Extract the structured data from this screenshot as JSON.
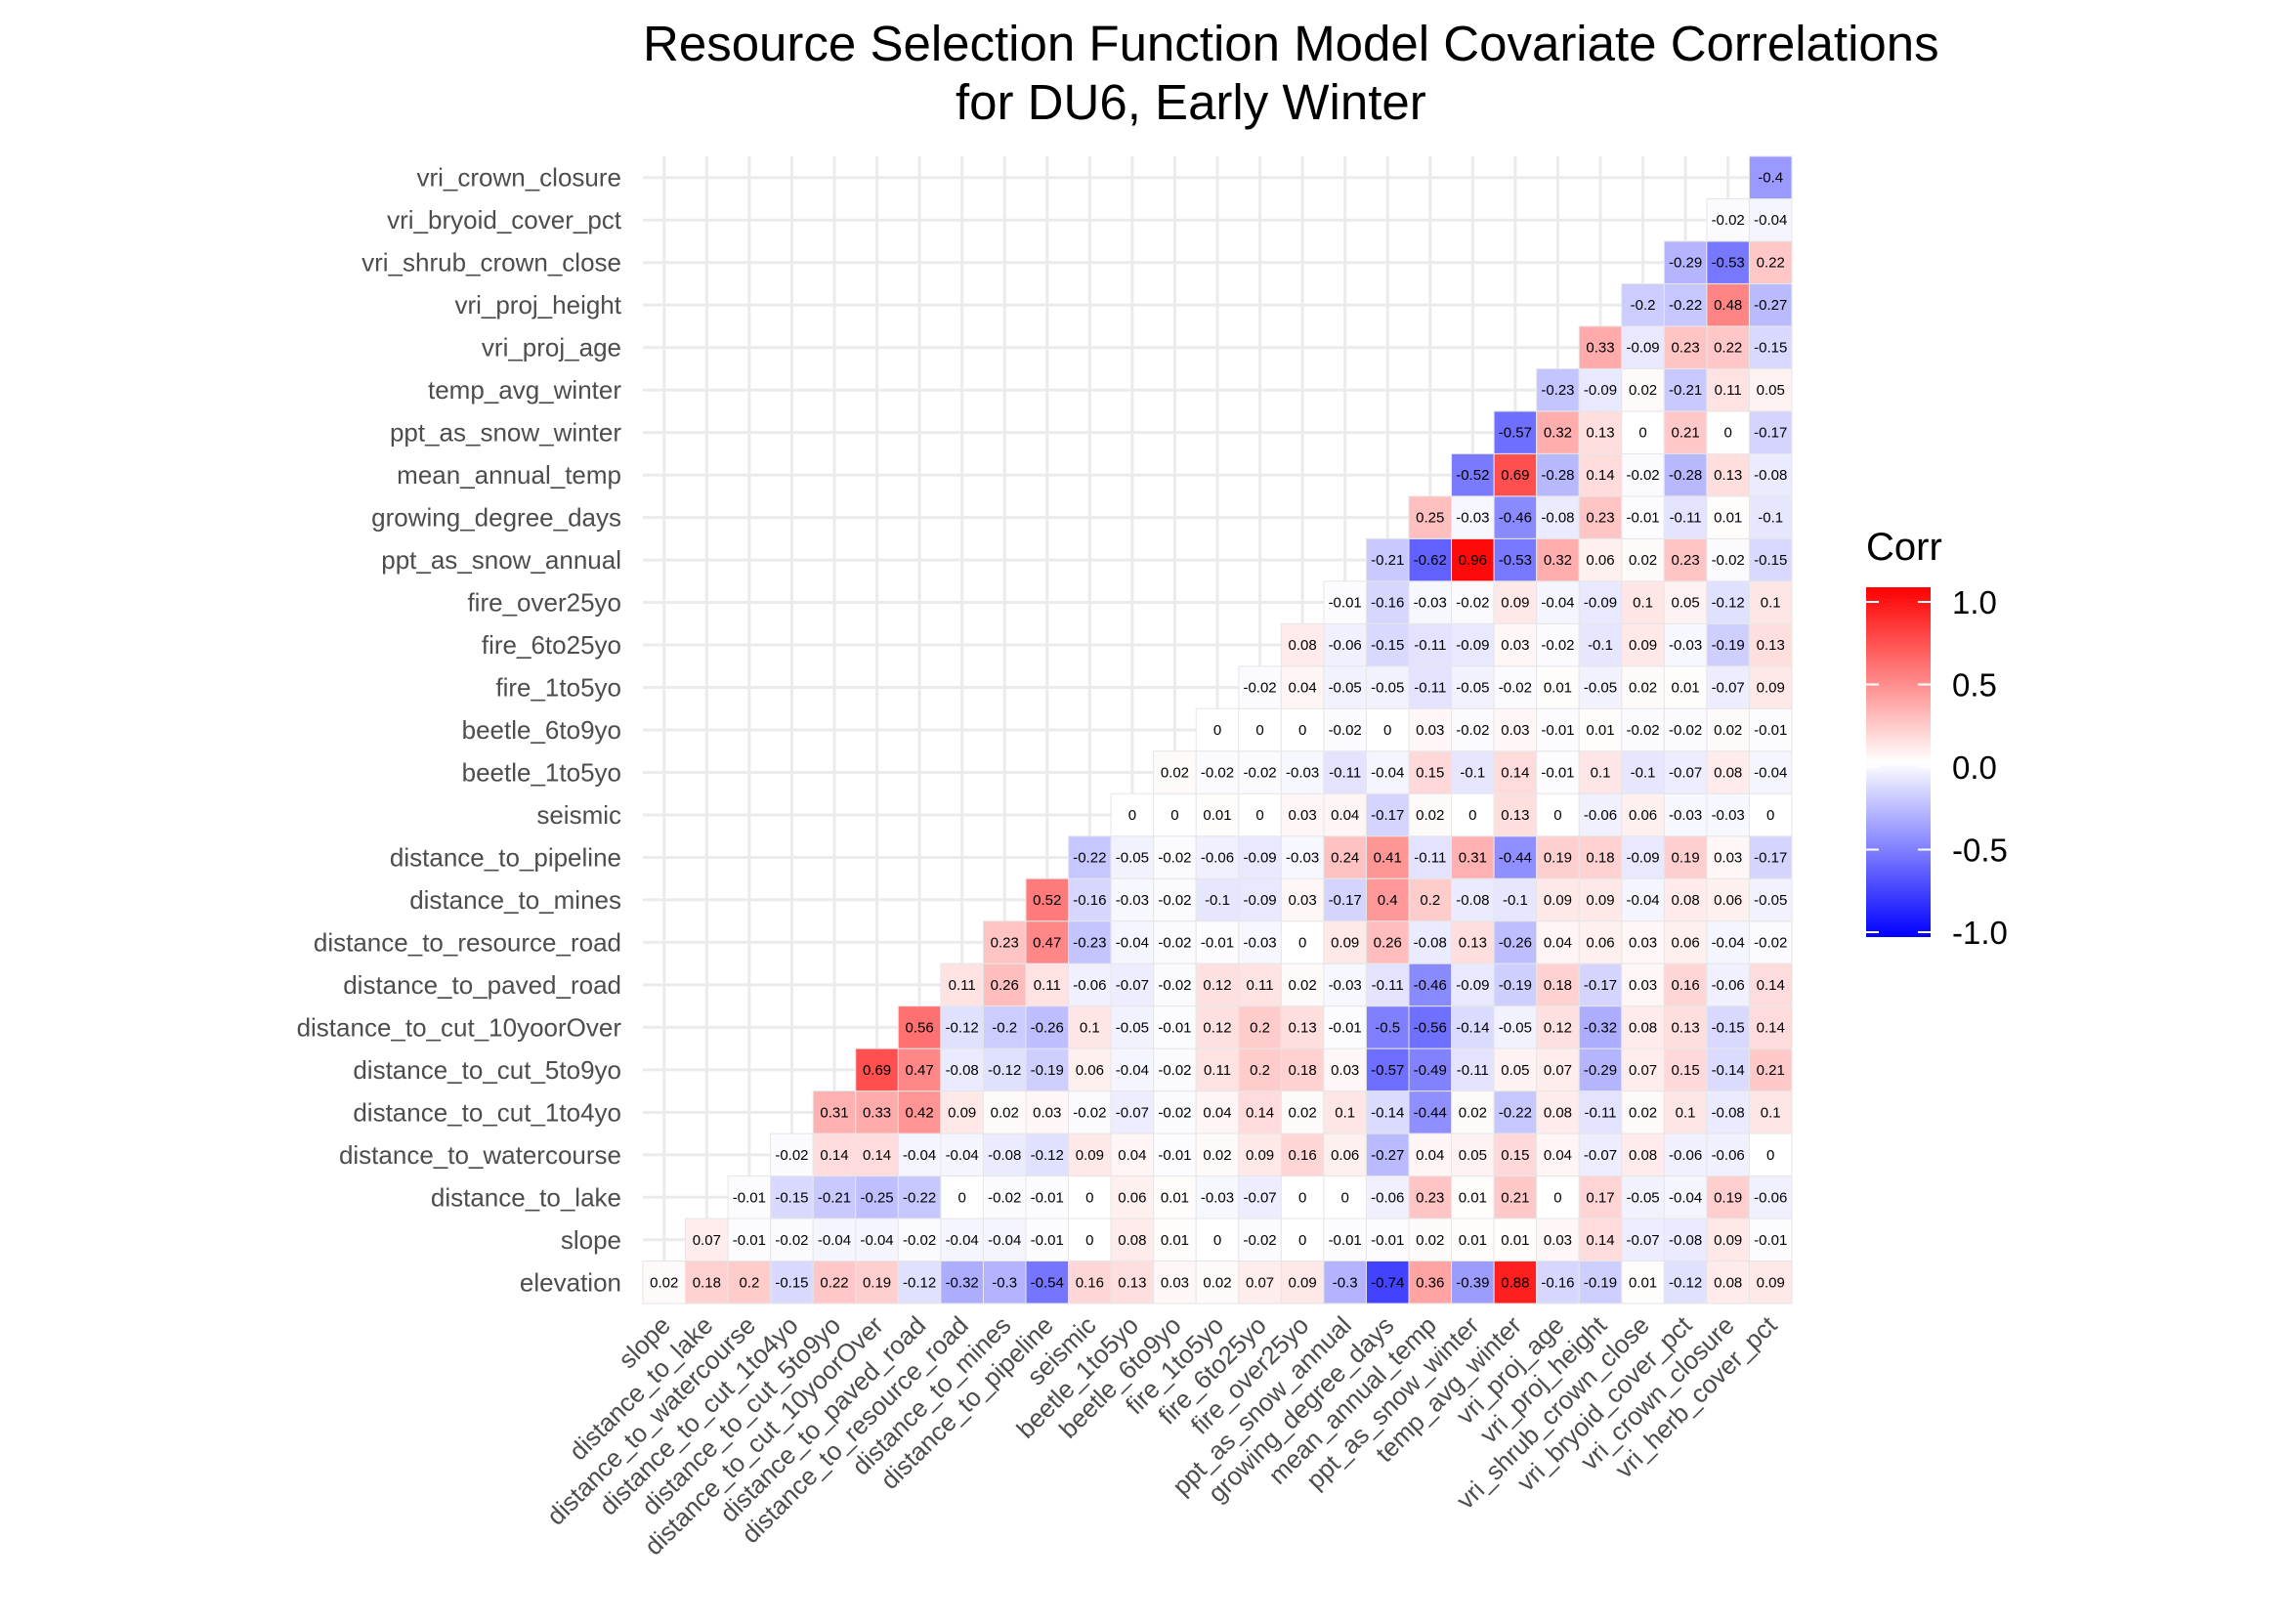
{
  "chart_data": {
    "type": "heatmap",
    "title": [
      "Resource Selection Function Model Covariate Correlations",
      "for DU6, Early Winter"
    ],
    "xlabel": "",
    "ylabel": "",
    "x_categories": [
      "slope",
      "distance_to_lake",
      "distance_to_watercourse",
      "distance_to_cut_1to4yo",
      "distance_to_cut_5to9yo",
      "distance_to_cut_10yoorOver",
      "distance_to_paved_road",
      "distance_to_resource_road",
      "distance_to_mines",
      "distance_to_pipeline",
      "seismic",
      "beetle_1to5yo",
      "beetle_6to9yo",
      "fire_1to5yo",
      "fire_6to25yo",
      "fire_over25yo",
      "ppt_as_snow_annual",
      "growing_degree_days",
      "mean_annual_temp",
      "ppt_as_snow_winter",
      "temp_avg_winter",
      "vri_proj_age",
      "vri_proj_height",
      "vri_shrub_crown_close",
      "vri_bryoid_cover_pct",
      "vri_crown_closure",
      "vri_herb_cover_pct"
    ],
    "y_categories": [
      "elevation",
      "slope",
      "distance_to_lake",
      "distance_to_watercourse",
      "distance_to_cut_1to4yo",
      "distance_to_cut_5to9yo",
      "distance_to_cut_10yoorOver",
      "distance_to_paved_road",
      "distance_to_resource_road",
      "distance_to_mines",
      "distance_to_pipeline",
      "seismic",
      "beetle_1to5yo",
      "beetle_6to9yo",
      "fire_1to5yo",
      "fire_6to25yo",
      "fire_over25yo",
      "ppt_as_snow_annual",
      "growing_degree_days",
      "mean_annual_temp",
      "ppt_as_snow_winter",
      "temp_avg_winter",
      "vri_proj_age",
      "vri_proj_height",
      "vri_shrub_crown_close",
      "vri_bryoid_cover_pct",
      "vri_crown_closure"
    ],
    "rows": [
      [
        0.02,
        0.18,
        0.2,
        -0.15,
        0.22,
        0.19,
        -0.12,
        -0.32,
        -0.3,
        -0.54,
        0.16,
        0.13,
        0.03,
        0.02,
        0.07,
        0.09,
        -0.3,
        -0.74,
        0.36,
        -0.39,
        0.88,
        -0.16,
        -0.19,
        0.01,
        -0.12,
        0.08,
        0.09
      ],
      [
        0.07,
        -0.01,
        -0.02,
        -0.04,
        -0.04,
        -0.02,
        -0.04,
        -0.04,
        -0.01,
        0,
        0.08,
        0.01,
        0,
        -0.02,
        0,
        -0.01,
        -0.01,
        0.02,
        0.01,
        0.01,
        0.03,
        0.14,
        -0.07,
        -0.08,
        0.09,
        -0.01
      ],
      [
        -0.01,
        -0.15,
        -0.21,
        -0.25,
        -0.22,
        0,
        -0.02,
        -0.01,
        0,
        0.06,
        0.01,
        -0.03,
        -0.07,
        0,
        0,
        -0.06,
        0.23,
        0.01,
        0.21,
        0,
        0.17,
        -0.05,
        -0.04,
        0.19,
        -0.06
      ],
      [
        -0.02,
        0.14,
        0.14,
        -0.04,
        -0.04,
        -0.08,
        -0.12,
        0.09,
        0.04,
        -0.01,
        0.02,
        0.09,
        0.16,
        0.06,
        -0.27,
        0.04,
        0.05,
        0.15,
        0.04,
        -0.07,
        0.08,
        -0.06,
        -0.06,
        0
      ],
      [
        0.31,
        0.33,
        0.42,
        0.09,
        0.02,
        0.03,
        -0.02,
        -0.07,
        -0.02,
        0.04,
        0.14,
        0.02,
        0.1,
        -0.14,
        -0.44,
        0.02,
        -0.22,
        0.08,
        -0.11,
        0.02,
        0.1,
        -0.08,
        0.1
      ],
      [
        0.69,
        0.47,
        -0.08,
        -0.12,
        -0.19,
        0.06,
        -0.04,
        -0.02,
        0.11,
        0.2,
        0.18,
        0.03,
        -0.57,
        -0.49,
        -0.11,
        0.05,
        0.07,
        -0.29,
        0.07,
        0.15,
        -0.14,
        0.21
      ],
      [
        0.56,
        -0.12,
        -0.2,
        -0.26,
        0.1,
        -0.05,
        -0.01,
        0.12,
        0.2,
        0.13,
        -0.01,
        -0.5,
        -0.56,
        -0.14,
        -0.05,
        0.12,
        -0.32,
        0.08,
        0.13,
        -0.15,
        0.14
      ],
      [
        0.11,
        0.26,
        0.11,
        -0.06,
        -0.07,
        -0.02,
        0.12,
        0.11,
        0.02,
        -0.03,
        -0.11,
        -0.46,
        -0.09,
        -0.19,
        0.18,
        -0.17,
        0.03,
        0.16,
        -0.06,
        0.14
      ],
      [
        0.23,
        0.47,
        -0.23,
        -0.04,
        -0.02,
        -0.01,
        -0.03,
        0,
        0.09,
        0.26,
        -0.08,
        0.13,
        -0.26,
        0.04,
        0.06,
        0.03,
        0.06,
        -0.04,
        -0.02
      ],
      [
        0.52,
        -0.16,
        -0.03,
        -0.02,
        -0.1,
        -0.09,
        0.03,
        -0.17,
        0.4,
        0.2,
        -0.08,
        -0.1,
        0.09,
        0.09,
        -0.04,
        0.08,
        0.06,
        -0.05
      ],
      [
        -0.22,
        -0.05,
        -0.02,
        -0.06,
        -0.09,
        -0.03,
        0.24,
        0.41,
        -0.11,
        0.31,
        -0.44,
        0.19,
        0.18,
        -0.09,
        0.19,
        0.03,
        -0.17
      ],
      [
        0,
        0,
        0.01,
        0,
        0.03,
        0.04,
        -0.17,
        0.02,
        0,
        0.13,
        0,
        -0.06,
        0.06,
        -0.03,
        -0.03,
        0
      ],
      [
        0.02,
        -0.02,
        -0.02,
        -0.03,
        -0.11,
        -0.04,
        0.15,
        -0.1,
        0.14,
        -0.01,
        0.1,
        -0.1,
        -0.07,
        0.08,
        -0.04
      ],
      [
        0,
        0,
        0,
        -0.02,
        0,
        0.03,
        -0.02,
        0.03,
        -0.01,
        0.01,
        -0.02,
        -0.02,
        0.02,
        -0.01
      ],
      [
        -0.02,
        0.04,
        -0.05,
        -0.05,
        -0.11,
        -0.05,
        -0.02,
        0.01,
        -0.05,
        0.02,
        0.01,
        -0.07,
        0.09
      ],
      [
        0.08,
        -0.06,
        -0.15,
        -0.11,
        -0.09,
        0.03,
        -0.02,
        -0.1,
        0.09,
        -0.03,
        -0.19,
        0.13
      ],
      [
        -0.01,
        -0.16,
        -0.03,
        -0.02,
        0.09,
        -0.04,
        -0.09,
        0.1,
        0.05,
        -0.12,
        0.1
      ],
      [
        -0.21,
        -0.62,
        0.96,
        -0.53,
        0.32,
        0.06,
        0.02,
        0.23,
        -0.02,
        -0.15
      ],
      [
        0.25,
        -0.03,
        -0.46,
        -0.08,
        0.23,
        -0.01,
        -0.11,
        0.01,
        -0.1
      ],
      [
        -0.52,
        0.69,
        -0.28,
        0.14,
        -0.02,
        -0.28,
        0.13,
        -0.08
      ],
      [
        -0.57,
        0.32,
        0.13,
        0,
        0.21,
        0,
        -0.17
      ],
      [
        -0.23,
        -0.09,
        0.02,
        -0.21,
        0.11,
        0.05
      ],
      [
        0.33,
        -0.09,
        0.23,
        0.22,
        -0.15
      ],
      [
        -0.2,
        -0.22,
        0.48,
        -0.27
      ],
      [
        -0.29,
        -0.53,
        0.22
      ],
      [
        -0.02,
        -0.04
      ],
      [
        -0.4
      ]
    ],
    "legend": {
      "title": "Corr",
      "ticks": [
        "1.0",
        "0.5",
        "0.0",
        "-0.5",
        "-1.0"
      ],
      "low_color": "#0000ff",
      "mid_color": "#ffffff",
      "high_color": "#ff0000"
    },
    "grid": true
  }
}
